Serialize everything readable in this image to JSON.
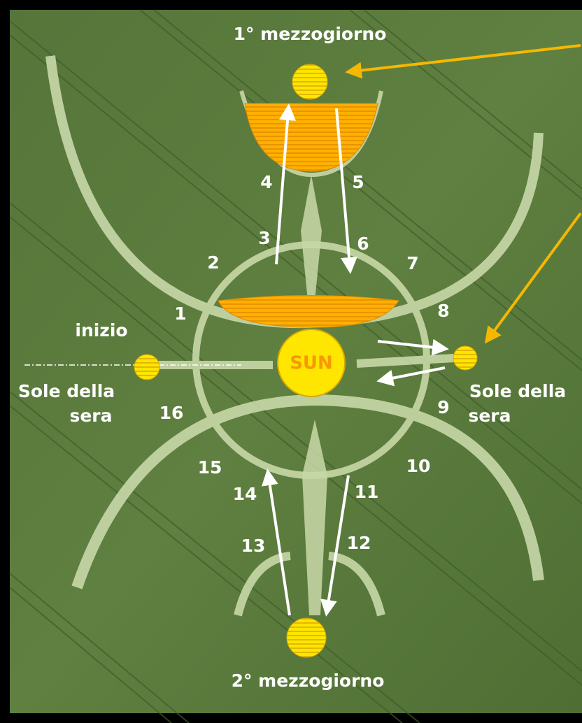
{
  "labels": {
    "top_noon": "1° mezzogiorno",
    "bottom_noon": "2° mezzogiorno",
    "start": "inizio",
    "left_sun": [
      "Sole della",
      "sera"
    ],
    "right_sun": [
      "Sole della",
      "sera"
    ],
    "center_sun": "SUN"
  },
  "numbers": [
    "1",
    "2",
    "3",
    "4",
    "5",
    "6",
    "7",
    "8",
    "9",
    "10",
    "11",
    "12",
    "13",
    "14",
    "15",
    "16"
  ]
}
